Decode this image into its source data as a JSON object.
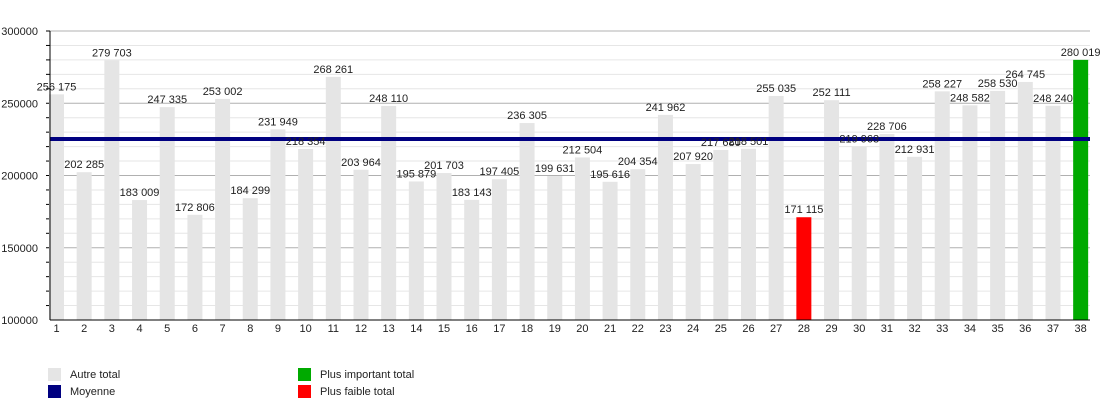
{
  "chart_data": {
    "type": "bar",
    "categories": [
      "1",
      "2",
      "3",
      "4",
      "5",
      "6",
      "7",
      "8",
      "9",
      "10",
      "11",
      "12",
      "13",
      "14",
      "15",
      "16",
      "17",
      "18",
      "19",
      "20",
      "21",
      "22",
      "23",
      "24",
      "25",
      "26",
      "27",
      "28",
      "29",
      "30",
      "31",
      "32",
      "33",
      "34",
      "35",
      "36",
      "37",
      "38"
    ],
    "values": [
      256175,
      202285,
      279703,
      183009,
      247335,
      172806,
      253002,
      184299,
      231949,
      218354,
      268261,
      203964,
      248110,
      195879,
      201703,
      183143,
      197405,
      236305,
      199631,
      212504,
      195616,
      204354,
      241962,
      207920,
      217680,
      218501,
      255035,
      171115,
      252111,
      219963,
      228706,
      212931,
      258227,
      248582,
      258530,
      264745,
      248240,
      280019
    ],
    "value_labels": [
      "256 175",
      "202 285",
      "279 703",
      "183 009",
      "247 335",
      "172 806",
      "253 002",
      "184 299",
      "231 949",
      "218 354",
      "268 261",
      "203 964",
      "248 110",
      "195 879",
      "201 703",
      "183 143",
      "197 405",
      "236 305",
      "199 631",
      "212 504",
      "195 616",
      "204 354",
      "241 962",
      "207 920",
      "217 680",
      "218 501",
      "255 035",
      "171 115",
      "252 111",
      "219 963",
      "228 706",
      "212 931",
      "258 227",
      "248 582",
      "258 530",
      "264 745",
      "248 240",
      "280 019"
    ],
    "mean": 225265,
    "ylim": [
      100000,
      300000
    ],
    "yticks": [
      "100000",
      "150000",
      "200000",
      "250000",
      "300000"
    ],
    "grid": true,
    "legend_placement": "bottom",
    "colors": {
      "other": "#e5e5e5",
      "mean": "#000080",
      "max": "#00aa00",
      "min": "#ff0000"
    },
    "max_index": 37,
    "min_index": 27
  },
  "legend": {
    "other": "Autre total",
    "mean": "Moyenne",
    "max": "Plus important total",
    "min": "Plus faible total"
  }
}
